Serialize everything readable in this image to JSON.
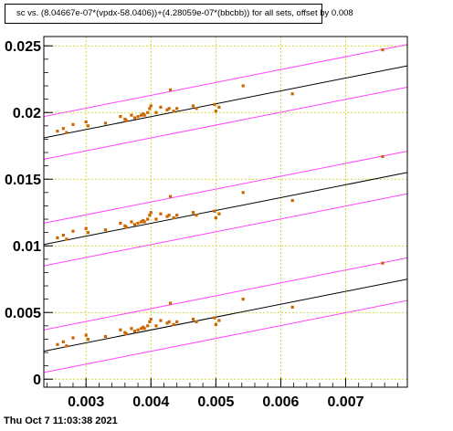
{
  "chart_data": {
    "type": "scatter",
    "title": "sc vs. (8.04667e-07*(vpdx-58.0406))+(4.28059e-07*(bbcbb)) for all sets, offset by 0.008",
    "xlabel": "",
    "ylabel": "",
    "xlim": [
      0.00235,
      0.00795
    ],
    "ylim": [
      -0.0006,
      0.0257
    ],
    "x_ticks": [
      0.003,
      0.004,
      0.005,
      0.006,
      0.007
    ],
    "x_tick_labels": [
      "0.003",
      "0.004",
      "0.005",
      "0.006",
      "0.007"
    ],
    "y_ticks": [
      0,
      0.005,
      0.01,
      0.015,
      0.02,
      0.025
    ],
    "y_tick_labels": [
      "0",
      "0.005",
      "0.01",
      "0.015",
      "0.02",
      "0.025"
    ],
    "grid": true,
    "marker_color": "#cc6600",
    "fit_line_color": "#000000",
    "band_line_color": "#ff44ff",
    "grid_color": "#cccc00",
    "x": [
      0.00256,
      0.00265,
      0.0027,
      0.0028,
      0.003,
      0.00303,
      0.0033,
      0.00353,
      0.0036,
      0.00362,
      0.0037,
      0.00375,
      0.0038,
      0.00385,
      0.00388,
      0.0039,
      0.00395,
      0.00398,
      0.004,
      0.00408,
      0.00415,
      0.00425,
      0.00428,
      0.0043,
      0.00435,
      0.0044,
      0.00465,
      0.0047,
      0.00498,
      0.005,
      0.00505,
      0.00542,
      0.00618,
      0.00757
    ],
    "series": [
      {
        "offset": 0.016,
        "values": [
          0.0186,
          0.0188,
          0.0185,
          0.0191,
          0.0193,
          0.019,
          0.0192,
          0.0197,
          0.0195,
          0.0194,
          0.0198,
          0.0196,
          0.0197,
          0.0198,
          0.0199,
          0.0198,
          0.02,
          0.0203,
          0.0205,
          0.02,
          0.0204,
          0.0202,
          0.0203,
          0.0217,
          0.0201,
          0.0203,
          0.0205,
          0.0203,
          0.0206,
          0.0201,
          0.0204,
          0.022,
          0.0214,
          0.0247
        ]
      },
      {
        "offset": 0.008,
        "values": [
          0.0106,
          0.0108,
          0.0105,
          0.0111,
          0.0113,
          0.011,
          0.0112,
          0.0117,
          0.0115,
          0.0114,
          0.0118,
          0.0116,
          0.0117,
          0.0118,
          0.0119,
          0.0118,
          0.012,
          0.0123,
          0.0125,
          0.012,
          0.0124,
          0.0122,
          0.0123,
          0.0137,
          0.0121,
          0.0123,
          0.0125,
          0.0123,
          0.0126,
          0.0121,
          0.0124,
          0.014,
          0.0134,
          0.0167
        ]
      },
      {
        "offset": 0,
        "values": [
          0.0026,
          0.0028,
          0.0025,
          0.0031,
          0.0033,
          0.003,
          0.0032,
          0.0037,
          0.0035,
          0.0034,
          0.0038,
          0.0036,
          0.0037,
          0.0038,
          0.0039,
          0.0038,
          0.004,
          0.0043,
          0.0045,
          0.004,
          0.0044,
          0.0042,
          0.0043,
          0.0057,
          0.0041,
          0.0043,
          0.0045,
          0.0043,
          0.0046,
          0.0041,
          0.0044,
          0.006,
          0.0054,
          0.0087
        ]
      }
    ],
    "fit": {
      "x_range": [
        0.00235,
        0.00795
      ],
      "lines": [
        {
          "y": [
            0.0021,
            0.0075
          ]
        },
        {
          "y": [
            0.0101,
            0.0155
          ]
        },
        {
          "y": [
            0.0181,
            0.0235
          ]
        }
      ],
      "band_halfwidth": 0.0016
    }
  },
  "footer": {
    "timestamp": "Thu Oct  7 11:03:38 2021"
  }
}
